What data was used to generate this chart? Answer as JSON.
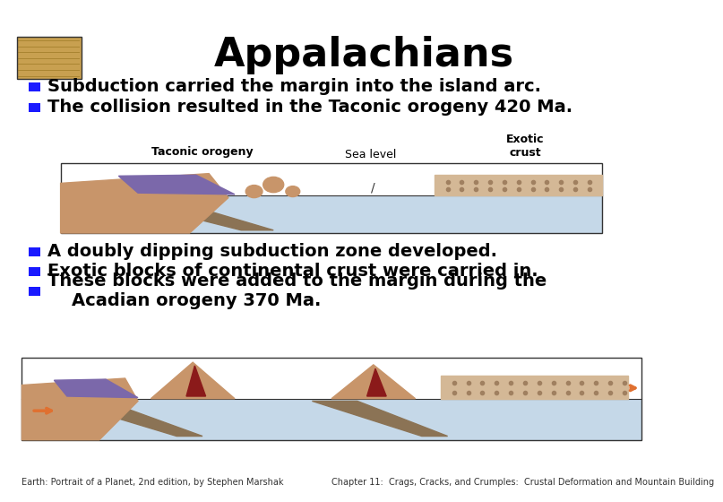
{
  "title": "Appalachians",
  "title_fontsize": 32,
  "title_fontweight": "bold",
  "title_color": "#000000",
  "bg_color": "#ffffff",
  "bullet_color": "#1a1aff",
  "bullet_points_top": [
    "Subduction carried the margin into the island arc.",
    "The collision resulted in the Taconic orogeny 420 Ma."
  ],
  "bullet_points_bottom": [
    "A doubly dipping subduction zone developed.",
    "Exotic blocks of continental crust were carried in.",
    "These blocks were added to the margin during the\n    Acadian orogeny 370 Ma."
  ],
  "text_fontsize": 14,
  "text_fontweight": "bold",
  "footer_left": "Earth: Portrait of a Planet, 2nd edition, by Stephen Marshak",
  "footer_right": "Chapter 11:  Crags, Cracks, and Crumples:  Crustal Deformation and Mountain Building",
  "footer_fontsize": 7,
  "bg_color_sea": "#c5d8e8",
  "bg_color_cont": "#c8956a",
  "bg_color_exotic": "#d4b896",
  "bg_color_wedge": "#7b68aa",
  "bg_color_slab": "#8b7355",
  "dot_color": "#a08060",
  "lava_color": "#8b1a1a",
  "arrow_color": "#e07030",
  "border_color": "#333333"
}
